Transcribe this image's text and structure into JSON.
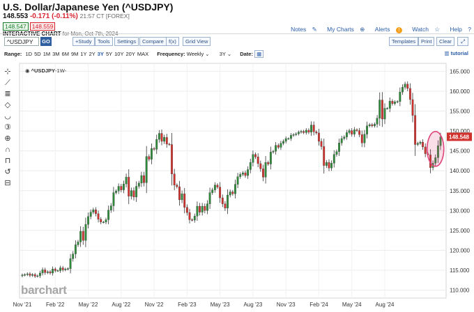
{
  "header": {
    "title": "U.S. Dollar/Japanese Yen (^USDJPY)",
    "last": "148.553",
    "change": "-0.171 (-0.11%)",
    "time": "21:57 CT [FOREX]",
    "bid": "148.547",
    "ask": "148.559",
    "interactive_chart": "INTERACTIVE CHART",
    "for_date": "for Mon, Oct 7th, 2024"
  },
  "toplinks": {
    "notes": "Notes",
    "mycharts": "My Charts",
    "alerts": "Alerts",
    "alerts_badge": "!",
    "watch": "Watch",
    "help": "Help"
  },
  "toolbar": {
    "symbol": "^USDJPY",
    "go": "GO",
    "study": "+Study",
    "tools": "Tools",
    "settings": "Settings",
    "compare": "Compare",
    "fx": "f(x)",
    "gridview": "Grid View",
    "templates": "Templates",
    "print": "Print",
    "clear": "Clear"
  },
  "range": {
    "label": "Range:",
    "options": [
      "1D",
      "5D",
      "1M",
      "3M",
      "6M",
      "9M",
      "1Y",
      "2Y",
      "3Y",
      "5Y",
      "10Y",
      "20Y",
      "MAX"
    ],
    "active": "3Y",
    "frequency_label": "Frequency:",
    "frequency": "Weekly",
    "period": "3Y",
    "date_label": "Date:",
    "tutorial": "tutorial"
  },
  "legend": "^USDJPY",
  "legend_suffix": "-1W-",
  "watermark": "barchart",
  "colors": {
    "up": "#2e8b3a",
    "down": "#d0312d",
    "price_tag": "#d0312d",
    "highlight": "#e0457b"
  },
  "chart_data": {
    "type": "candlestick",
    "symbol": "^USDJPY",
    "frequency": "Weekly",
    "ylim": [
      108,
      167
    ],
    "y_ticks": [
      110,
      115,
      120,
      125,
      130,
      135,
      140,
      145,
      150,
      155,
      160,
      165
    ],
    "y_tick_labels": [
      "110.000",
      "115.000",
      "120.000",
      "125.000",
      "130.000",
      "135.000",
      "140.000",
      "145.000",
      "150.000",
      "155.000",
      "160.000",
      "165.000"
    ],
    "x_labels": [
      "Nov '21",
      "Feb '22",
      "May '22",
      "Aug '22",
      "Nov '22",
      "Feb '23",
      "May '23",
      "Aug '23",
      "Nov '23",
      "Feb '24",
      "May '24",
      "Aug '24"
    ],
    "last_price_label": "148.548",
    "last_price": 148.548,
    "grid": true,
    "annotation": "highlight ellipse around latest candles",
    "closes": [
      113.8,
      113.9,
      114.1,
      113.7,
      113.9,
      113.5,
      113.6,
      114.3,
      115.1,
      114.4,
      114.6,
      114.3,
      115.3,
      114.9,
      114.9,
      115.6,
      115.1,
      115.3,
      115.4,
      117.9,
      119.1,
      121.4,
      122.1,
      124.8,
      122.5,
      126.5,
      128.5,
      129.6,
      130.2,
      129.2,
      127.8,
      127.1,
      127.1,
      127.7,
      130.1,
      131.2,
      134.5,
      134.9,
      136.1,
      135.2,
      136.7,
      138.4,
      133.6,
      135.0,
      133.4,
      136.1,
      136.9,
      138.8,
      137.0,
      143.6,
      142.9,
      145.6,
      145.4,
      147.9,
      149.4,
      147.4,
      148.4,
      146.7,
      146.6,
      139.2,
      136.4,
      136.0,
      132.7,
      134.2,
      130.8,
      129.5,
      127.7,
      127.6,
      128.6,
      131.1,
      129.6,
      131.1,
      130.0,
      131.7,
      134.5,
      135.2,
      136.4,
      135.9,
      133.2,
      131.7,
      130.6,
      133.9,
      134.7,
      134.2,
      136.6,
      138.5,
      139.1,
      139.5,
      138.8,
      140.3,
      142.1,
      144.1,
      143.5,
      141.8,
      140.5,
      138.4,
      142.1,
      141.7,
      144.7,
      144.9,
      146.4,
      145.9,
      146.9,
      147.4,
      148.1,
      148.1,
      148.9,
      149.1,
      149.3,
      149.7,
      149.9,
      149.6,
      150.2,
      149.7,
      151.5,
      149.8,
      149.5,
      147.4,
      146.1,
      141.3,
      142.1,
      140.7,
      141.9,
      144.1,
      144.8,
      147.0,
      148.1,
      148.5,
      149.6,
      150.1,
      149.2,
      150.3,
      150.1,
      149.1,
      147.0,
      149.2,
      151.3,
      151.6,
      151.3,
      151.7,
      153.2,
      157.8,
      153.0,
      155.7,
      155.7,
      157.5,
      156.9,
      157.3,
      157.4,
      159.8,
      161.0,
      161.8,
      160.7,
      157.9,
      153.9,
      146.6,
      146.9,
      147.2,
      146.0,
      144.3,
      144.0,
      140.8,
      141.9,
      143.3,
      146.3,
      148.5
    ]
  }
}
